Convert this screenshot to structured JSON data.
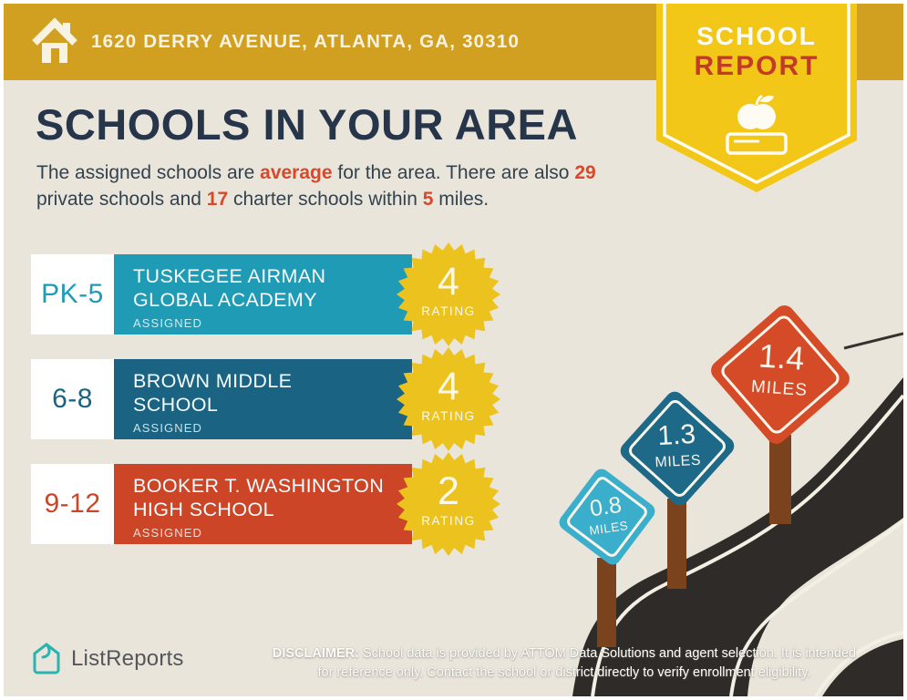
{
  "header": {
    "address": "1620 DERRY AVENUE, ATLANTA, GA, 30310"
  },
  "badge": {
    "line1": "SCHOOL",
    "line2": "REPORT"
  },
  "main": {
    "title": "SCHOOLS IN YOUR AREA",
    "intro": {
      "t1": "The assigned schools are ",
      "h1": "average",
      "t2": " for the area. There are also ",
      "h2": "29",
      "t3": " private schools and ",
      "h3": "17",
      "t4": " charter schools within ",
      "h4": "5",
      "t5": " miles."
    }
  },
  "schools": [
    {
      "grades": "PK-5",
      "name_line1": "TUSKEGEE AIRMAN",
      "name_line2": "GLOBAL ACADEMY",
      "status": "ASSIGNED",
      "rating": "4",
      "rating_label": "RATING",
      "color": "#209BB6"
    },
    {
      "grades": "6-8",
      "name_line1": "BROWN MIDDLE",
      "name_line2": "SCHOOL",
      "status": "ASSIGNED",
      "rating": "4",
      "rating_label": "RATING",
      "color": "#1A6382"
    },
    {
      "grades": "9-12",
      "name_line1": "BOOKER T. WASHINGTON",
      "name_line2": "HIGH SCHOOL",
      "status": "ASSIGNED",
      "rating": "2",
      "rating_label": "RATING",
      "color": "#CC4526"
    }
  ],
  "signs": [
    {
      "distance": "0.8",
      "unit": "MILES",
      "color": "#3BAECB"
    },
    {
      "distance": "1.3",
      "unit": "MILES",
      "color": "#1E6987"
    },
    {
      "distance": "1.4",
      "unit": "MILES",
      "color": "#D54B28"
    }
  ],
  "footer": {
    "logo_text": "ListReports",
    "disclaimer": {
      "label": "DISCLAIMER:",
      "line1": " School data is provided by ATTOM Data Solutions and agent selection. It is intended",
      "line2": "for reference only. Contact the school or district directly to verify enrollment eligibility."
    }
  },
  "colors": {
    "header_gold": "#D2A020",
    "badge_yellow": "#F3C717",
    "badge_report_red": "#C23B28",
    "accent_red": "#D7492A",
    "title_navy": "#26354A",
    "background_beige": "#EAE5DB",
    "road_dark": "#2E2B28",
    "rating_badge_yellow": "#ECC31E",
    "sign_post_brown": "#7A431E",
    "logo_teal": "#2AB3AF"
  }
}
